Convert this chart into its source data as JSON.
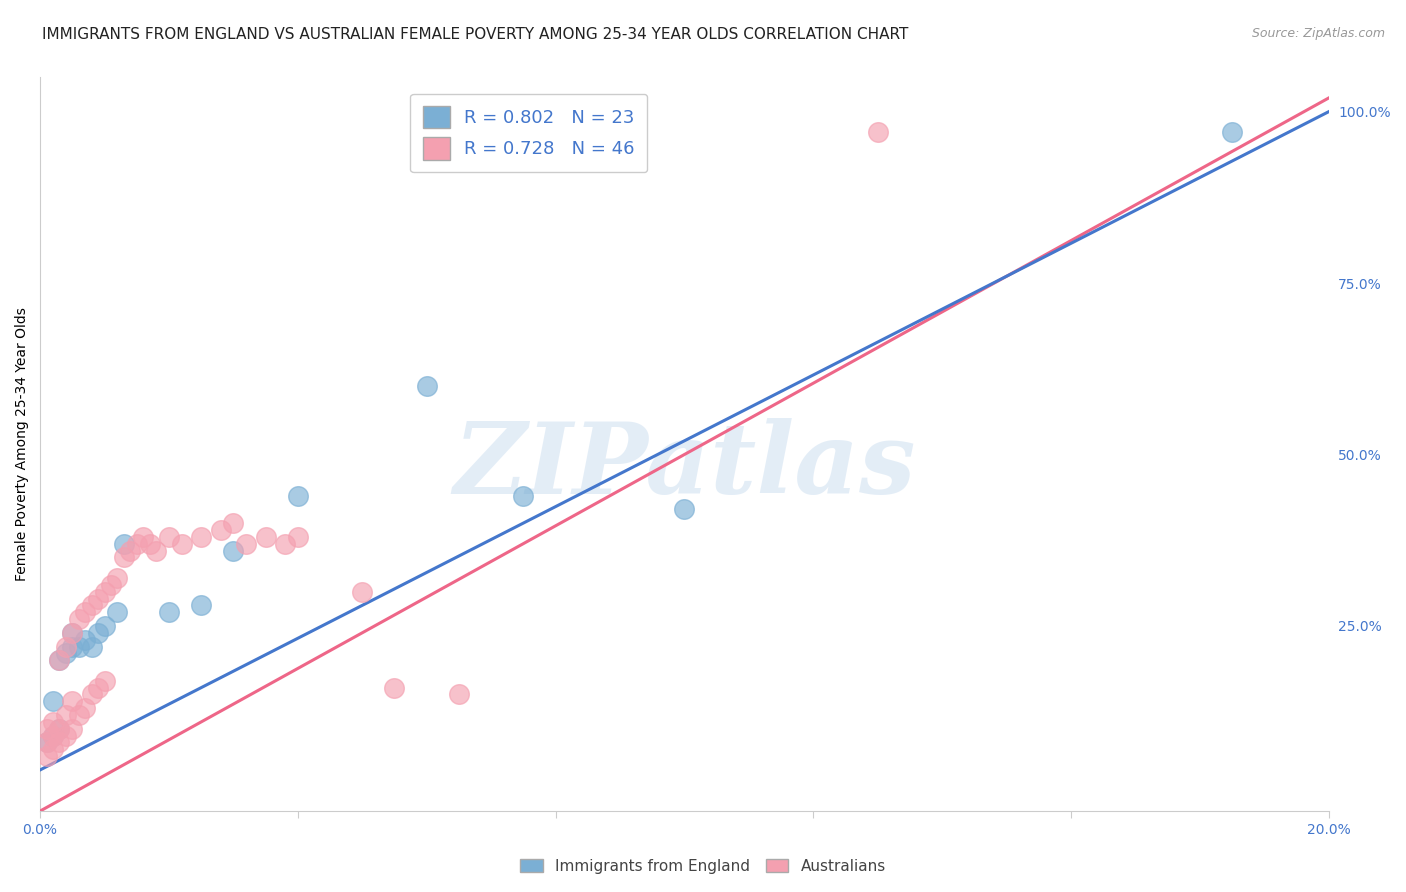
{
  "title": "IMMIGRANTS FROM ENGLAND VS AUSTRALIAN FEMALE POVERTY AMONG 25-34 YEAR OLDS CORRELATION CHART",
  "source": "Source: ZipAtlas.com",
  "ylabel": "Female Poverty Among 25-34 Year Olds",
  "watermark": "ZIPatlas",
  "blue_R": 0.802,
  "blue_N": 23,
  "pink_R": 0.728,
  "pink_N": 46,
  "blue_color": "#7BAFD4",
  "pink_color": "#F4A0B0",
  "blue_line_color": "#4477CC",
  "pink_line_color": "#EE6688",
  "legend_label_blue": "Immigrants from England",
  "legend_label_pink": "Australians",
  "xlim": [
    0.0,
    0.2
  ],
  "ylim": [
    -0.02,
    1.05
  ],
  "grid_color": "#DDDDDD",
  "background_color": "#FFFFFF",
  "title_fontsize": 11,
  "axis_label_fontsize": 10,
  "tick_fontsize": 10,
  "legend_fontsize": 13,
  "blue_x": [
    0.001,
    0.002,
    0.002,
    0.003,
    0.003,
    0.004,
    0.005,
    0.005,
    0.006,
    0.007,
    0.008,
    0.009,
    0.01,
    0.012,
    0.013,
    0.02,
    0.025,
    0.03,
    0.04,
    0.06,
    0.075,
    0.1,
    0.185
  ],
  "blue_y": [
    0.08,
    0.09,
    0.14,
    0.1,
    0.2,
    0.21,
    0.22,
    0.24,
    0.22,
    0.23,
    0.22,
    0.24,
    0.25,
    0.27,
    0.37,
    0.27,
    0.28,
    0.36,
    0.44,
    0.6,
    0.44,
    0.42,
    0.97
  ],
  "pink_x": [
    0.001,
    0.001,
    0.001,
    0.002,
    0.002,
    0.002,
    0.003,
    0.003,
    0.003,
    0.004,
    0.004,
    0.004,
    0.005,
    0.005,
    0.005,
    0.006,
    0.006,
    0.007,
    0.007,
    0.008,
    0.008,
    0.009,
    0.009,
    0.01,
    0.01,
    0.011,
    0.012,
    0.013,
    0.014,
    0.015,
    0.016,
    0.017,
    0.018,
    0.02,
    0.022,
    0.025,
    0.028,
    0.03,
    0.032,
    0.035,
    0.038,
    0.04,
    0.05,
    0.055,
    0.065,
    0.13
  ],
  "pink_y": [
    0.06,
    0.08,
    0.1,
    0.07,
    0.09,
    0.11,
    0.08,
    0.1,
    0.2,
    0.09,
    0.12,
    0.22,
    0.1,
    0.14,
    0.24,
    0.12,
    0.26,
    0.13,
    0.27,
    0.15,
    0.28,
    0.16,
    0.29,
    0.17,
    0.3,
    0.31,
    0.32,
    0.35,
    0.36,
    0.37,
    0.38,
    0.37,
    0.36,
    0.38,
    0.37,
    0.38,
    0.39,
    0.4,
    0.37,
    0.38,
    0.37,
    0.38,
    0.3,
    0.16,
    0.15,
    0.97
  ],
  "blue_trendline_x": [
    0.0,
    0.2
  ],
  "blue_trendline_y": [
    0.04,
    1.0
  ],
  "pink_trendline_x": [
    0.0,
    0.2
  ],
  "pink_trendline_y": [
    -0.02,
    1.02
  ]
}
